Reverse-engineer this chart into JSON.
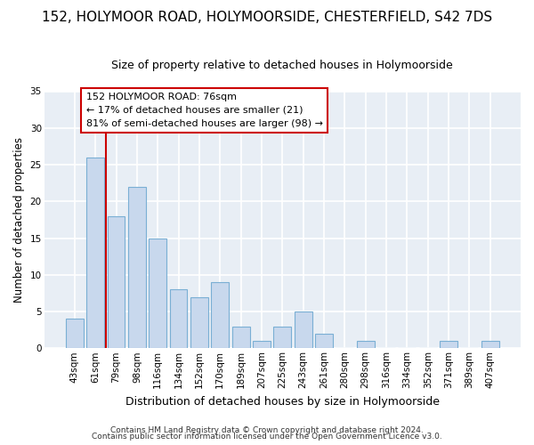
{
  "title": "152, HOLYMOOR ROAD, HOLYMOORSIDE, CHESTERFIELD, S42 7DS",
  "subtitle": "Size of property relative to detached houses in Holymoorside",
  "xlabel": "Distribution of detached houses by size in Holymoorside",
  "ylabel": "Number of detached properties",
  "footer_line1": "Contains HM Land Registry data © Crown copyright and database right 2024.",
  "footer_line2": "Contains public sector information licensed under the Open Government Licence v3.0.",
  "categories": [
    "43sqm",
    "61sqm",
    "79sqm",
    "98sqm",
    "116sqm",
    "134sqm",
    "152sqm",
    "170sqm",
    "189sqm",
    "207sqm",
    "225sqm",
    "243sqm",
    "261sqm",
    "280sqm",
    "298sqm",
    "316sqm",
    "334sqm",
    "352sqm",
    "371sqm",
    "389sqm",
    "407sqm"
  ],
  "values": [
    4,
    26,
    18,
    22,
    15,
    8,
    7,
    9,
    3,
    1,
    3,
    5,
    2,
    0,
    1,
    0,
    0,
    0,
    1,
    0,
    1
  ],
  "bar_color": "#c8d8ed",
  "bar_edgecolor": "#7aafd4",
  "background_color": "#e8eef5",
  "fig_background": "#ffffff",
  "grid_color": "#ffffff",
  "vline_x": 2.0,
  "vline_color": "#cc0000",
  "ann_line1": "152 HOLYMOOR ROAD: 76sqm",
  "ann_line2": "← 17% of detached houses are smaller (21)",
  "ann_line3": "81% of semi-detached houses are larger (98) →",
  "ylim": [
    0,
    35
  ],
  "yticks": [
    0,
    5,
    10,
    15,
    20,
    25,
    30,
    35
  ],
  "title_fontsize": 11,
  "subtitle_fontsize": 9,
  "xlabel_fontsize": 9,
  "ylabel_fontsize": 8.5,
  "tick_fontsize": 7.5,
  "footer_fontsize": 6.5
}
